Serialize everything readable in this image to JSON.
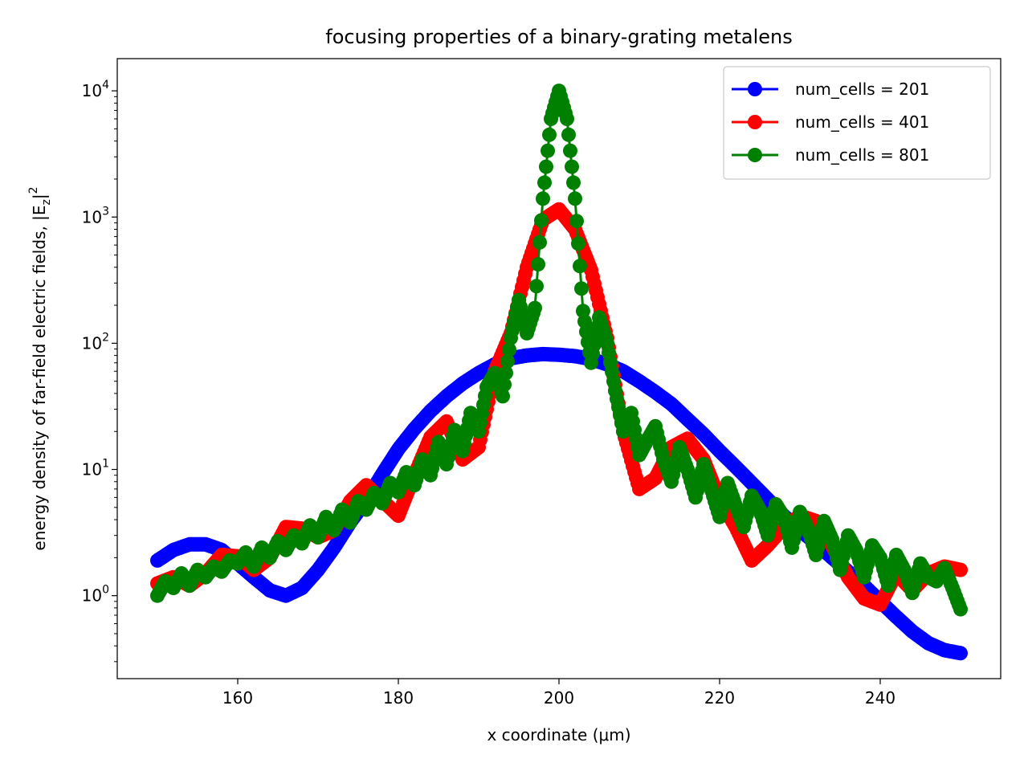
{
  "chart_data": {
    "type": "scatter",
    "title": "focusing properties of a binary-grating metalens",
    "xlabel": "x coordinate (μm)",
    "ylabel": "energy density of far-field electric fields, |E",
    "ylabel_sub": "z",
    "ylabel_tail": "|",
    "ylabel_sup": "2",
    "xlim": [
      145,
      255
    ],
    "ylim": [
      0.22,
      18000
    ],
    "yscale": "log",
    "x_ticks": [
      {
        "value": 160,
        "label": "160"
      },
      {
        "value": 180,
        "label": "180"
      },
      {
        "value": 200,
        "label": "200"
      },
      {
        "value": 220,
        "label": "220"
      },
      {
        "value": 240,
        "label": "240"
      }
    ],
    "y_ticks": [
      {
        "value": 1,
        "base": "10",
        "exp": "0"
      },
      {
        "value": 10,
        "base": "10",
        "exp": "1"
      },
      {
        "value": 100,
        "base": "10",
        "exp": "2"
      },
      {
        "value": 1000,
        "base": "10",
        "exp": "3"
      },
      {
        "value": 10000,
        "base": "10",
        "exp": "4"
      }
    ],
    "grid": false,
    "legend_position": "top-right",
    "series": [
      {
        "name": "num_cells = 201",
        "color": "#0000ff",
        "x": [
          150,
          152,
          154,
          156,
          158,
          160,
          162,
          164,
          166,
          168,
          170,
          172,
          174,
          176,
          178,
          180,
          182,
          184,
          186,
          188,
          190,
          192,
          194,
          196,
          198,
          200,
          202,
          204,
          206,
          208,
          210,
          212,
          214,
          216,
          218,
          220,
          222,
          224,
          226,
          228,
          230,
          232,
          234,
          236,
          238,
          240,
          242,
          244,
          246,
          248,
          250
        ],
        "values": [
          1.9,
          2.3,
          2.55,
          2.55,
          2.3,
          1.8,
          1.4,
          1.1,
          1.0,
          1.15,
          1.6,
          2.4,
          3.8,
          5.7,
          9.2,
          14.5,
          21,
          29,
          38,
          48,
          58,
          68,
          76,
          80,
          82,
          81,
          79,
          75,
          68,
          60,
          50,
          41,
          33,
          25,
          19,
          14,
          10.5,
          7.8,
          5.8,
          4.3,
          3.3,
          2.6,
          2.0,
          1.55,
          1.2,
          0.9,
          0.68,
          0.52,
          0.42,
          0.37,
          0.35
        ]
      },
      {
        "name": "num_cells = 401",
        "color": "#ff0000",
        "x": [
          150,
          152,
          154,
          156,
          158,
          160,
          162,
          164,
          166,
          168,
          170,
          172,
          174,
          176,
          178,
          180,
          182,
          184,
          186,
          188,
          190,
          192,
          194,
          196,
          198,
          200,
          202,
          204,
          206,
          208,
          210,
          212,
          214,
          216,
          218,
          220,
          222,
          224,
          226,
          228,
          230,
          232,
          234,
          236,
          238,
          240,
          242,
          244,
          246,
          248,
          250
        ],
        "values": [
          1.25,
          1.4,
          1.2,
          1.5,
          2.1,
          2.05,
          1.6,
          2.0,
          3.5,
          3.4,
          2.9,
          3.3,
          5.6,
          7.5,
          5.7,
          4.3,
          9.0,
          18,
          24,
          12,
          15,
          60,
          120,
          400,
          950,
          1150,
          800,
          380,
          110,
          20,
          7.0,
          8.5,
          15,
          17.5,
          12,
          5.8,
          3.5,
          1.9,
          2.5,
          3.5,
          4.3,
          3.9,
          2.5,
          1.4,
          0.95,
          0.85,
          1.5,
          1.1,
          1.5,
          1.7,
          1.6
        ]
      },
      {
        "name": "num_cells = 801",
        "color": "#008000",
        "x": [
          150,
          151,
          152,
          153,
          154,
          155,
          156,
          157,
          158,
          159,
          160,
          161,
          162,
          163,
          164,
          165,
          166,
          167,
          168,
          169,
          170,
          171,
          172,
          173,
          174,
          175,
          176,
          177,
          178,
          179,
          180,
          181,
          182,
          183,
          184,
          185,
          186,
          187,
          188,
          189,
          190,
          191,
          192,
          193,
          194,
          195,
          196,
          197,
          198,
          199,
          200,
          201,
          202,
          203,
          204,
          205,
          206,
          207,
          208,
          209,
          210,
          211,
          212,
          213,
          214,
          215,
          216,
          217,
          218,
          219,
          220,
          221,
          222,
          223,
          224,
          225,
          226,
          227,
          228,
          229,
          230,
          231,
          232,
          233,
          234,
          235,
          236,
          237,
          238,
          239,
          240,
          241,
          242,
          243,
          244,
          245,
          246,
          247,
          248,
          249,
          250
        ],
        "values": [
          1.0,
          1.3,
          1.15,
          1.5,
          1.2,
          1.6,
          1.4,
          1.7,
          1.55,
          1.9,
          1.8,
          2.2,
          1.7,
          2.4,
          2.0,
          2.7,
          2.3,
          3.0,
          2.6,
          3.6,
          2.9,
          4.2,
          3.3,
          4.8,
          3.8,
          5.6,
          4.8,
          6.5,
          5.4,
          7.8,
          6.6,
          9.5,
          7.5,
          12.0,
          9.0,
          16.5,
          11.0,
          20.5,
          14.0,
          28.0,
          20.0,
          45.0,
          58.0,
          38.0,
          110.0,
          220.0,
          120.0,
          190.0,
          1400.0,
          6000.0,
          10000.0,
          6000.0,
          1400.0,
          180.0,
          70.0,
          160.0,
          100.0,
          42.0,
          20.0,
          28.0,
          13.0,
          17.0,
          22.0,
          12.0,
          8.0,
          15.0,
          10.0,
          6.0,
          11.0,
          6.8,
          4.2,
          7.8,
          5.2,
          3.5,
          6.2,
          4.8,
          3.0,
          5.3,
          4.2,
          2.4,
          4.6,
          3.4,
          2.1,
          3.9,
          2.8,
          1.6,
          3.0,
          2.3,
          1.4,
          2.5,
          2.0,
          1.2,
          2.1,
          1.6,
          1.05,
          1.8,
          1.4,
          1.3,
          1.65,
          1.15,
          0.78
        ]
      }
    ]
  }
}
